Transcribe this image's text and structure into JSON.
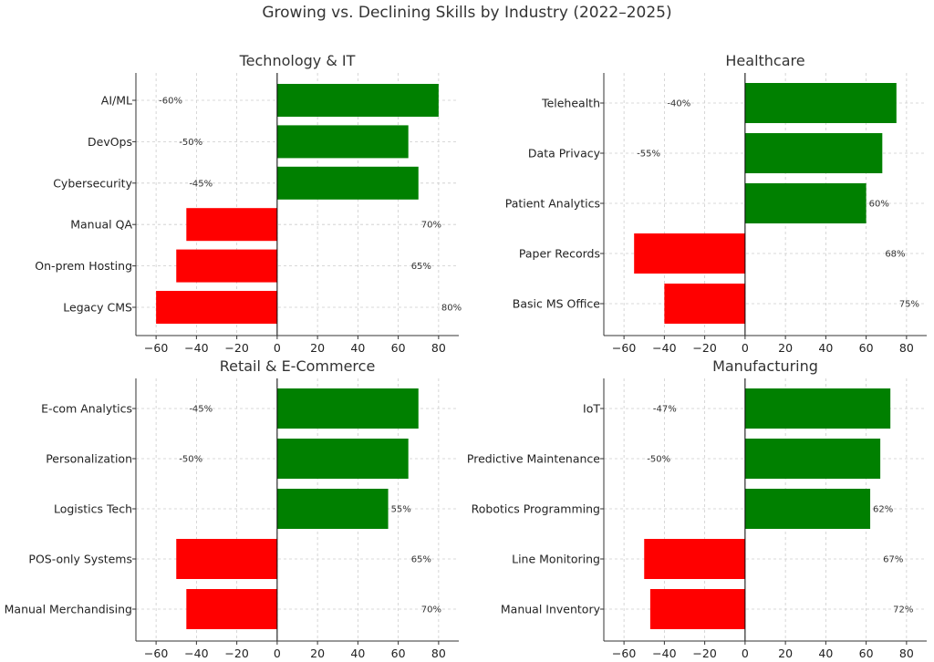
{
  "suptitle": "Growing vs. Declining Skills by Industry (2022–2025)",
  "chart_data": [
    {
      "type": "bar",
      "orientation": "horizontal",
      "title": "Technology & IT",
      "categories": [
        "AI/ML",
        "DevOps",
        "Cybersecurity",
        "Manual QA",
        "On-prem Hosting",
        "Legacy CMS"
      ],
      "values": [
        80,
        65,
        70,
        -45,
        -50,
        -60
      ],
      "data_labels": [
        "-60%",
        "-50%",
        "-45%",
        "70%",
        "65%",
        "80%"
      ],
      "xlim": [
        -70,
        90
      ],
      "xticks": [
        -60,
        -40,
        -20,
        0,
        20,
        40,
        60,
        80
      ],
      "grid": true
    },
    {
      "type": "bar",
      "orientation": "horizontal",
      "title": "Healthcare",
      "categories": [
        "Telehealth",
        "Data Privacy",
        "Patient Analytics",
        "Paper Records",
        "Basic MS Office"
      ],
      "values": [
        75,
        68,
        60,
        -55,
        -40
      ],
      "data_labels": [
        "-40%",
        "-55%",
        "60%",
        "68%",
        "75%"
      ],
      "xlim": [
        -70,
        90
      ],
      "xticks": [
        -60,
        -40,
        -20,
        0,
        20,
        40,
        60,
        80
      ],
      "grid": true
    },
    {
      "type": "bar",
      "orientation": "horizontal",
      "title": "Retail & E-Commerce",
      "categories": [
        "E-com Analytics",
        "Personalization",
        "Logistics Tech",
        "POS-only Systems",
        "Manual Merchandising"
      ],
      "values": [
        70,
        65,
        55,
        -50,
        -45
      ],
      "data_labels": [
        "-45%",
        "-50%",
        "55%",
        "65%",
        "70%"
      ],
      "xlim": [
        -70,
        90
      ],
      "xticks": [
        -60,
        -40,
        -20,
        0,
        20,
        40,
        60,
        80
      ],
      "grid": true
    },
    {
      "type": "bar",
      "orientation": "horizontal",
      "title": "Manufacturing",
      "categories": [
        "IoT",
        "Predictive Maintenance",
        "Robotics Programming",
        "Line Monitoring",
        "Manual Inventory"
      ],
      "values": [
        72,
        67,
        62,
        -50,
        -47
      ],
      "data_labels": [
        "-47%",
        "-50%",
        "62%",
        "67%",
        "72%"
      ],
      "xlim": [
        -70,
        90
      ],
      "xticks": [
        -60,
        -40,
        -20,
        0,
        20,
        40,
        60,
        80
      ],
      "grid": true
    }
  ],
  "colors": {
    "positive": "#008000",
    "negative": "#ff0000",
    "grid": "#cccccc",
    "axis": "#333333"
  }
}
